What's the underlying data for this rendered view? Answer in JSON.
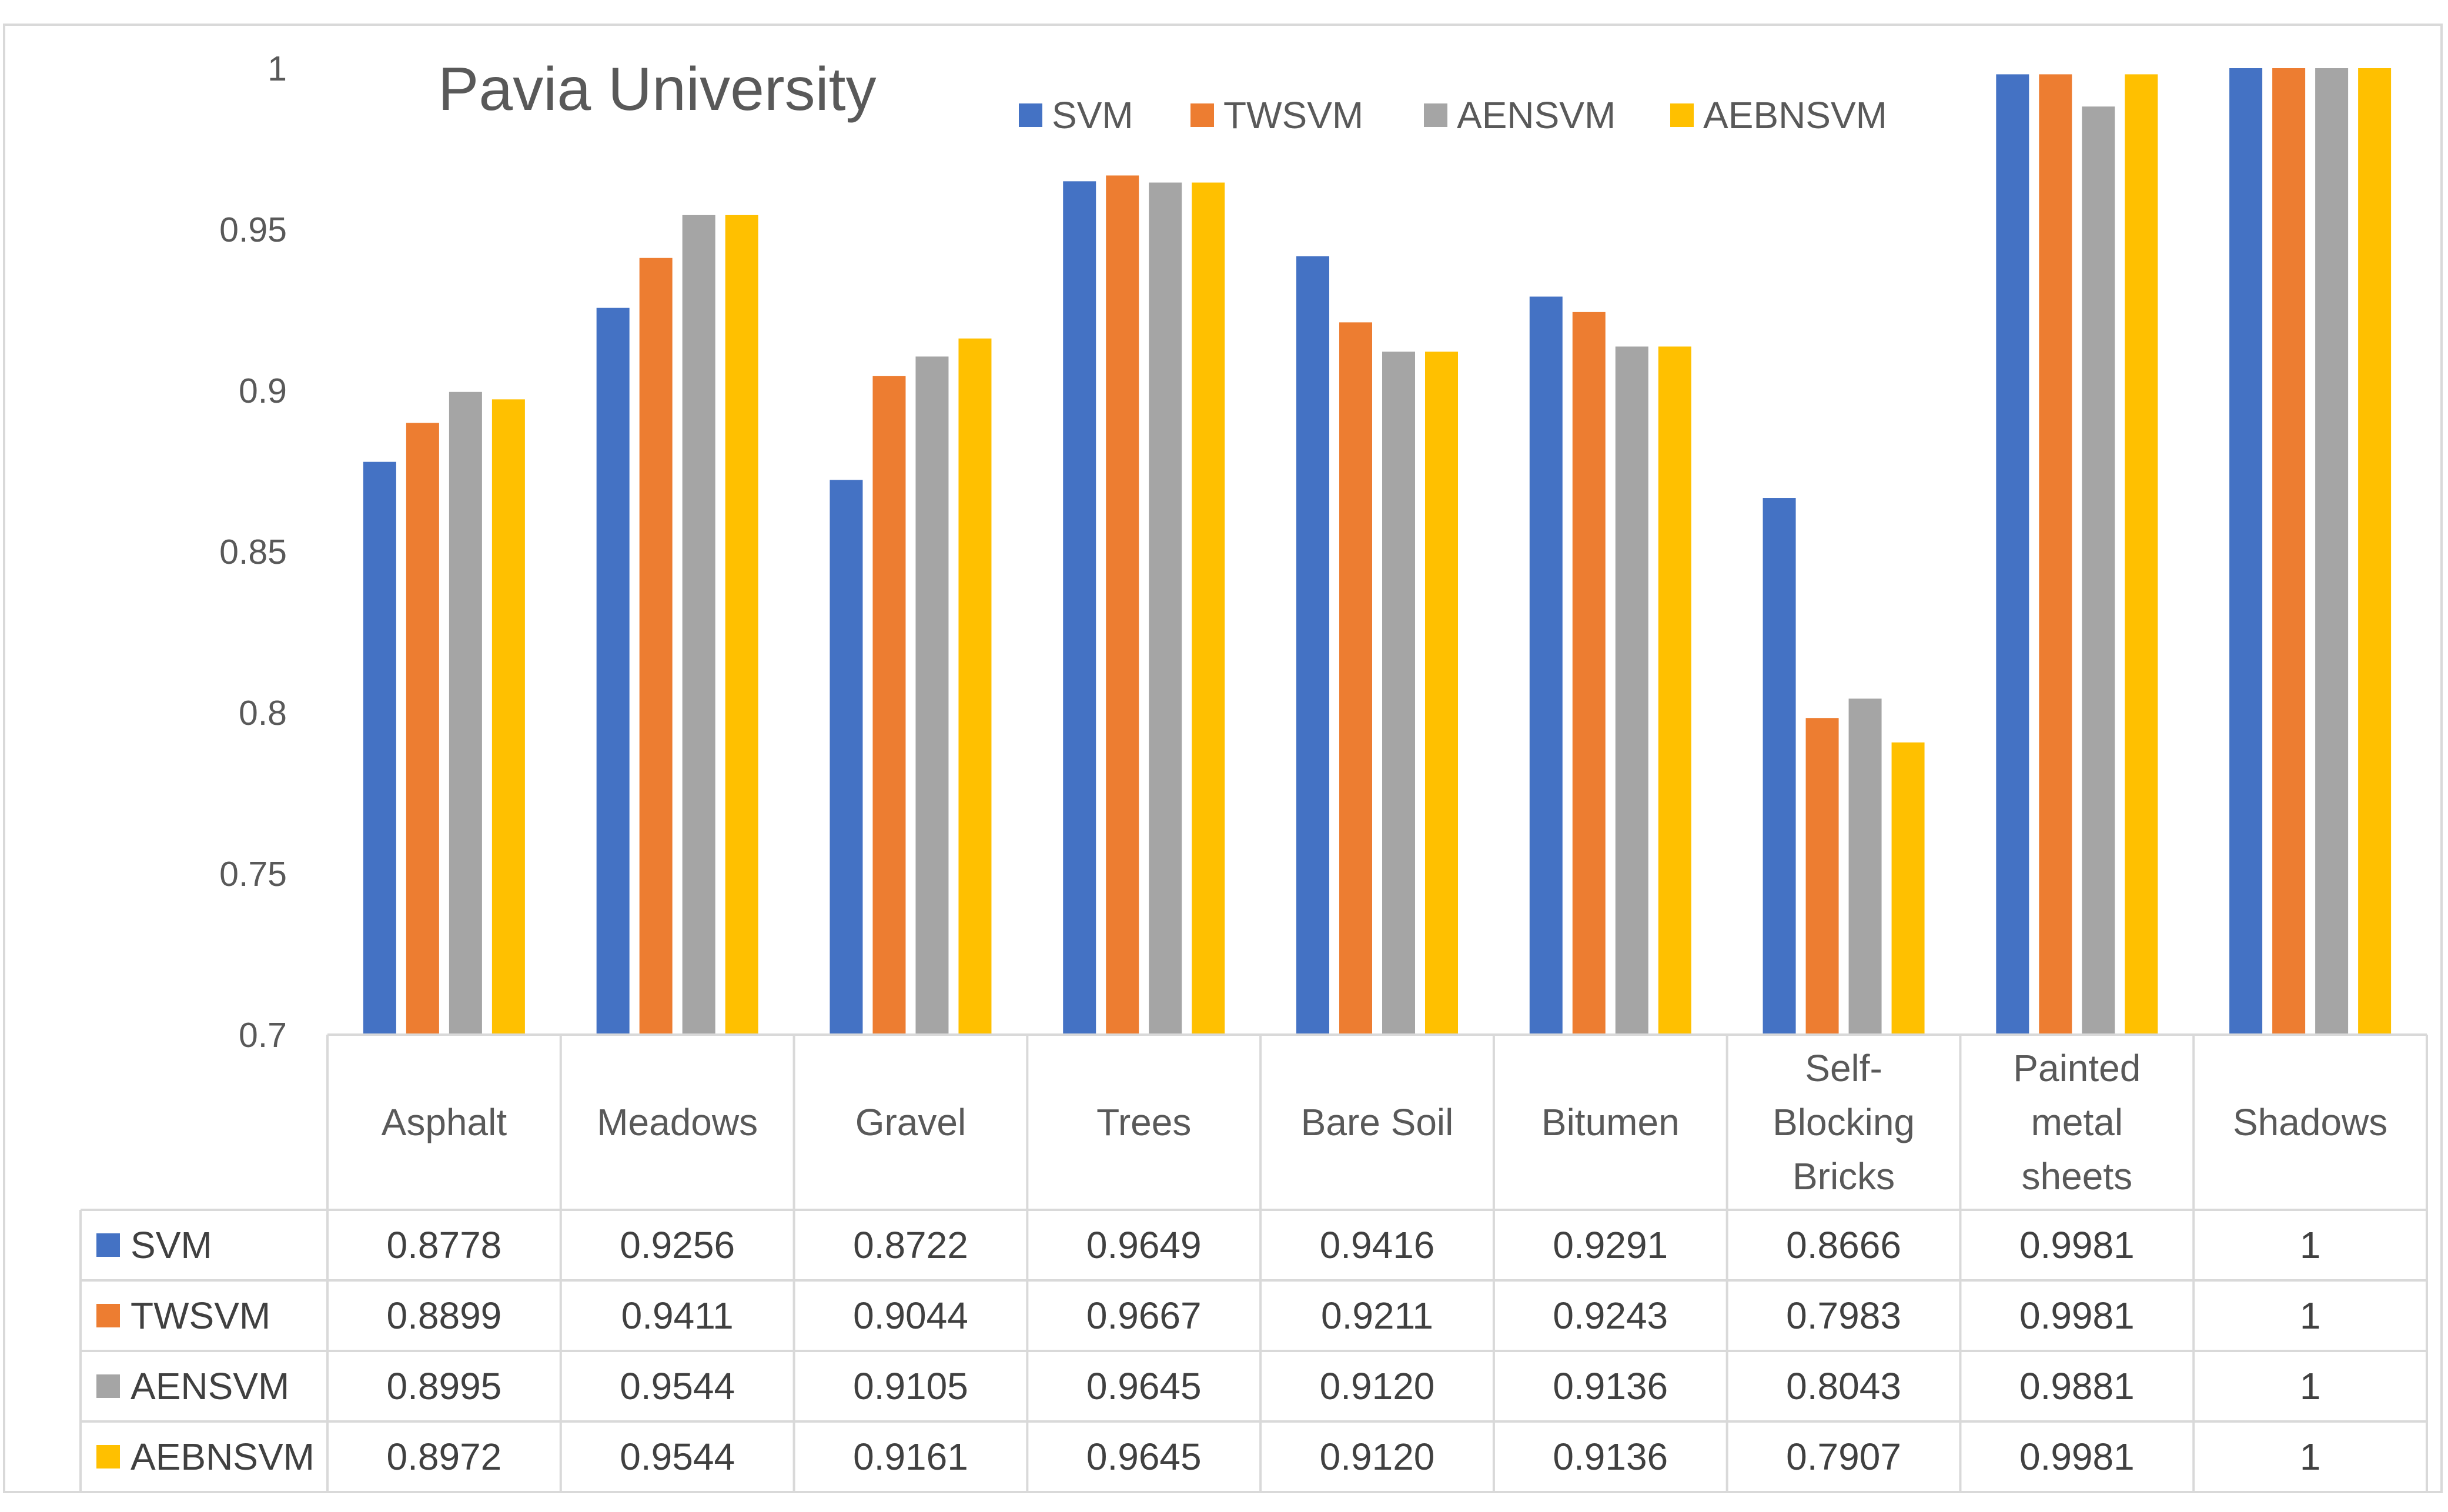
{
  "chart_data": {
    "type": "bar",
    "title": "Pavia University",
    "xlabel": "",
    "ylabel": "",
    "ylim": [
      0.7,
      1
    ],
    "yticks": [
      "0.7",
      "0.75",
      "0.8",
      "0.85",
      "0.9",
      "0.95",
      "1"
    ],
    "legend_position": "top-right",
    "grid": false,
    "categories": [
      [
        "Asphalt"
      ],
      [
        "Meadows"
      ],
      [
        "Gravel"
      ],
      [
        "Trees"
      ],
      [
        "Bare Soil"
      ],
      [
        "Bitumen"
      ],
      [
        "Self-",
        "Blocking",
        "Bricks"
      ],
      [
        "Painted",
        "metal",
        "sheets"
      ],
      [
        "Shadows"
      ]
    ],
    "series": [
      {
        "name": "SVM",
        "color": "#4472C4",
        "values": [
          0.8778,
          0.9256,
          0.8722,
          0.9649,
          0.9416,
          0.9291,
          0.8666,
          0.9981,
          1
        ],
        "labels": [
          "0.8778",
          "0.9256",
          "0.8722",
          "0.9649",
          "0.9416",
          "0.9291",
          "0.8666",
          "0.9981",
          "1"
        ]
      },
      {
        "name": "TWSVM",
        "color": "#ED7D31",
        "values": [
          0.8899,
          0.9411,
          0.9044,
          0.9667,
          0.9211,
          0.9243,
          0.7983,
          0.9981,
          1
        ],
        "labels": [
          "0.8899",
          "0.9411",
          "0.9044",
          "0.9667",
          "0.9211",
          "0.9243",
          "0.7983",
          "0.9981",
          "1"
        ]
      },
      {
        "name": "AENSVM",
        "color": "#A5A5A5",
        "values": [
          0.8995,
          0.9544,
          0.9105,
          0.9645,
          0.912,
          0.9136,
          0.8043,
          0.9881,
          1
        ],
        "labels": [
          "0.8995",
          "0.9544",
          "0.9105",
          "0.9645",
          "0.9120",
          "0.9136",
          "0.8043",
          "0.9881",
          "1"
        ]
      },
      {
        "name": "AEBNSVM",
        "color": "#FFC000",
        "values": [
          0.8972,
          0.9544,
          0.9161,
          0.9645,
          0.912,
          0.9136,
          0.7907,
          0.9981,
          1
        ],
        "labels": [
          "0.8972",
          "0.9544",
          "0.9161",
          "0.9645",
          "0.9120",
          "0.9136",
          "0.7907",
          "0.9981",
          "1"
        ]
      }
    ]
  }
}
